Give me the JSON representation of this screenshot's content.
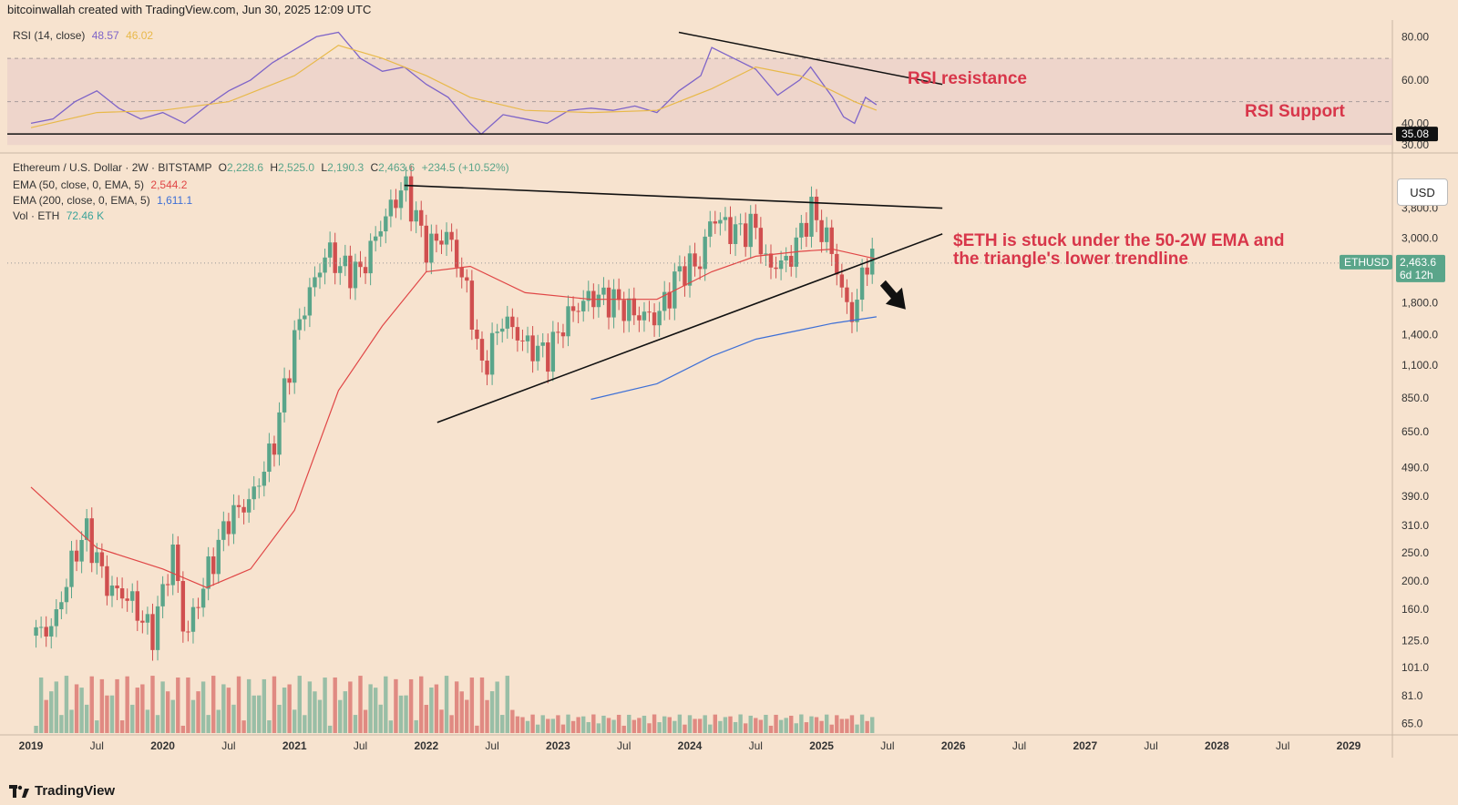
{
  "header": {
    "credit": "bitcoinwallah created with TradingView.com, Jun 30, 2025 12:09 UTC"
  },
  "footer": {
    "brand": "TradingView"
  },
  "rsi_panel": {
    "title": "RSI (14, close)",
    "value": "48.57",
    "ma_value": "46.02",
    "support_marker": "35.08",
    "ticks": [
      "80.00",
      "60.00",
      "40.00",
      "30.00"
    ],
    "annotation_resistance": "RSI resistance",
    "annotation_support": "RSI Support"
  },
  "price_panel": {
    "title": "Ethereum / U.S. Dollar · 2W · BITSTAMP",
    "ohlc": {
      "o_label": "O",
      "o": "2,228.6",
      "h_label": "H",
      "h": "2,525.0",
      "l_label": "L",
      "l": "2,190.3",
      "c_label": "C",
      "c": "2,463.6",
      "chg": "+234.5 (+10.52%)"
    },
    "ema50_label": "EMA (50, close, 0, EMA, 5)",
    "ema50_value": "2,544.2",
    "ema200_label": "EMA (200, close, 0, EMA, 5)",
    "ema200_value": "1,611.1",
    "vol_label": "Vol · ETH",
    "vol_value": "72.46 K",
    "currency_button": "USD",
    "ticker_tag": "ETHUSD",
    "last_price": "2,463.6",
    "countdown": "6d 12h",
    "annotation": [
      "$ETH is stuck under the 50-2W EMA and",
      "the triangle's lower trendline"
    ]
  },
  "colors": {
    "background": "#f7e3cf",
    "up": "#5aa58a",
    "down": "#d04f4f",
    "ema50": "#e04646",
    "ema200": "#3d6fd6",
    "rsi": "#7e64c8",
    "rsi_ma": "#e8b94a",
    "annotation": "#d8364a"
  },
  "chart_data": [
    {
      "type": "line",
      "title": "RSI (14, close)",
      "ylim": [
        28,
        86
      ],
      "ticks": [
        80,
        60,
        40,
        30
      ],
      "series": [
        {
          "name": "RSI (14, close)",
          "x": [
            "2019-01",
            "2019-03",
            "2019-05",
            "2019-07",
            "2019-09",
            "2019-11",
            "2020-01",
            "2020-03",
            "2020-05",
            "2020-07",
            "2020-09",
            "2020-11",
            "2021-01",
            "2021-03",
            "2021-05",
            "2021-07",
            "2021-09",
            "2021-11",
            "2022-01",
            "2022-03",
            "2022-05",
            "2022-06",
            "2022-08",
            "2022-10",
            "2022-12",
            "2023-02",
            "2023-04",
            "2023-06",
            "2023-08",
            "2023-10",
            "2023-12",
            "2024-02",
            "2024-03",
            "2024-05",
            "2024-07",
            "2024-09",
            "2024-11",
            "2024-12",
            "2025-02",
            "2025-03",
            "2025-04",
            "2025-05",
            "2025-06"
          ],
          "values": [
            40,
            42,
            50,
            55,
            47,
            42,
            45,
            40,
            48,
            55,
            60,
            68,
            74,
            80,
            82,
            70,
            64,
            66,
            58,
            52,
            40,
            35,
            44,
            42,
            40,
            46,
            47,
            46,
            48,
            45,
            55,
            62,
            75,
            70,
            65,
            53,
            60,
            66,
            52,
            43,
            40,
            52,
            48.57
          ]
        },
        {
          "name": "RSI-based MA",
          "x": [
            "2019-01",
            "2019-07",
            "2020-01",
            "2020-07",
            "2021-01",
            "2021-05",
            "2021-09",
            "2022-01",
            "2022-05",
            "2022-10",
            "2023-04",
            "2023-10",
            "2024-03",
            "2024-07",
            "2024-11",
            "2025-02",
            "2025-04",
            "2025-06"
          ],
          "values": [
            38,
            45,
            46,
            50,
            62,
            76,
            70,
            62,
            52,
            46,
            45,
            46,
            56,
            66,
            62,
            55,
            50,
            46.02
          ]
        }
      ],
      "annotations": [
        "RSI resistance",
        "RSI Support"
      ],
      "support_level": 35.08
    },
    {
      "type": "candlestick",
      "title": "Ethereum / U.S. Dollar · 2W · BITSTAMP",
      "scale": "log",
      "ylim": [
        62,
        4600
      ],
      "ticks": [
        3800,
        3000,
        2400,
        1800,
        1400,
        1100,
        850,
        650,
        490,
        390,
        310,
        250,
        200,
        160,
        125,
        101,
        81,
        65
      ],
      "x_ticks": [
        "2019",
        "Jul",
        "2020",
        "Jul",
        "2021",
        "Jul",
        "2022",
        "Jul",
        "2023",
        "Jul",
        "2024",
        "Jul",
        "2025",
        "Jul",
        "2026",
        "Jul",
        "2027",
        "Jul",
        "2028",
        "Jul",
        "2029"
      ],
      "close_series": {
        "x": [
          "2019-01",
          "2019-03",
          "2019-05",
          "2019-06",
          "2019-08",
          "2019-10",
          "2019-12",
          "2020-02",
          "2020-03",
          "2020-05",
          "2020-07",
          "2020-09",
          "2020-11",
          "2021-01",
          "2021-02",
          "2021-04",
          "2021-05",
          "2021-07",
          "2021-09",
          "2021-11",
          "2022-01",
          "2022-03",
          "2022-05",
          "2022-06",
          "2022-08",
          "2022-10",
          "2022-12",
          "2023-02",
          "2023-04",
          "2023-06",
          "2023-08",
          "2023-10",
          "2023-12",
          "2024-02",
          "2024-03",
          "2024-05",
          "2024-07",
          "2024-08",
          "2024-10",
          "2024-12",
          "2025-02",
          "2025-03",
          "2025-04",
          "2025-05",
          "2025-06"
        ],
        "values": [
          130,
          140,
          250,
          300,
          190,
          175,
          130,
          260,
          125,
          210,
          330,
          380,
          570,
          1350,
          1800,
          2750,
          2400,
          2300,
          3400,
          4600,
          2800,
          3100,
          1800,
          1050,
          1600,
          1300,
          1200,
          1650,
          1900,
          1850,
          1650,
          1600,
          2300,
          2500,
          3600,
          3150,
          3300,
          2400,
          2500,
          3800,
          2700,
          1850,
          1600,
          2600,
          2463.6
        ]
      },
      "series": [
        {
          "name": "EMA (50, close, 0, EMA, 5)",
          "x": [
            "2019-01",
            "2019-07",
            "2020-01",
            "2020-05",
            "2020-09",
            "2021-01",
            "2021-05",
            "2021-09",
            "2022-01",
            "2022-05",
            "2022-10",
            "2023-04",
            "2023-10",
            "2024-03",
            "2024-07",
            "2024-11",
            "2025-02",
            "2025-06"
          ],
          "values": [
            420,
            260,
            220,
            190,
            220,
            350,
            900,
            1500,
            2300,
            2400,
            1950,
            1850,
            1850,
            2300,
            2600,
            2700,
            2750,
            2544.2
          ]
        },
        {
          "name": "EMA (200, close, 0, EMA, 5)",
          "x": [
            "2023-04",
            "2023-10",
            "2024-03",
            "2024-07",
            "2024-11",
            "2025-02",
            "2025-06"
          ],
          "values": [
            840,
            950,
            1180,
            1350,
            1450,
            1530,
            1611.1
          ]
        }
      ],
      "volume_last": "72.46 K",
      "annotation": "$ETH is stuck under the 50-2W EMA and the triangle's lower trendline"
    }
  ]
}
